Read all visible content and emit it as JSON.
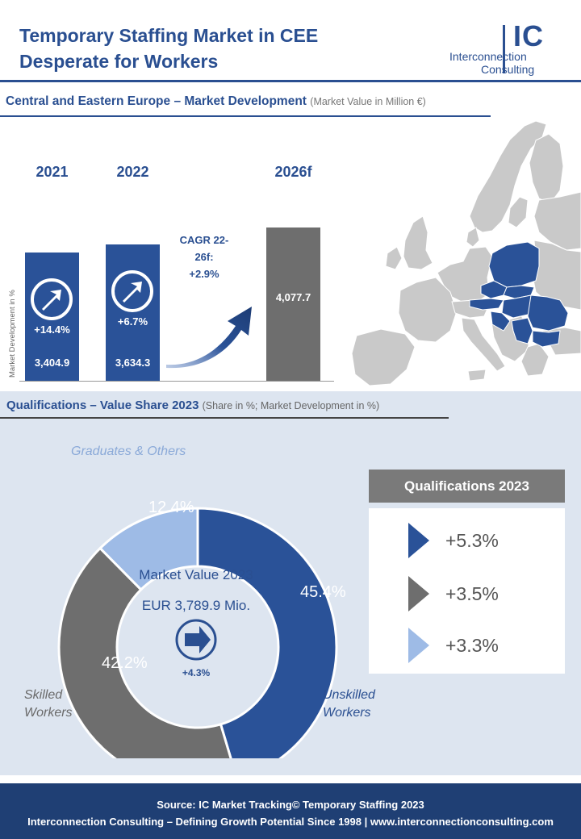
{
  "header": {
    "title_line1": "Temporary Staffing Market in CEE",
    "title_line2": "Desperate for Workers",
    "logo_mark": "IC",
    "logo_line1": "Interconnection",
    "logo_line2": "Consulting"
  },
  "market": {
    "title": "Central and Eastern Europe – Market Development",
    "subtitle": "(Market Value in Million €)",
    "ylabel": "Market Development in %",
    "cagr_label": "CAGR 22-26f:",
    "cagr_value": "+2.9%"
  },
  "qualifications": {
    "title": "Qualifications – Value Share 2023",
    "subtitle": "(Share in %; Market Development in %)",
    "center_title": "Market Value 2023",
    "center_value": "EUR 3,789.9 Mio.",
    "center_growth": "+4.3%",
    "panel_title": "Qualifications 2023",
    "growth": [
      {
        "value": "+5.3%",
        "color": "#2a5298"
      },
      {
        "value": "+3.5%",
        "color": "#6e6e6e"
      },
      {
        "value": "+3.3%",
        "color": "#9ebbe6"
      }
    ],
    "segments": [
      {
        "name": "Unskilled\nWorkers",
        "line1": "Unskilled",
        "line2": "Workers",
        "label": "45.4%"
      },
      {
        "name": "Skilled\nWorkers",
        "line1": "Skilled",
        "line2": "Workers",
        "label": "42.2%"
      },
      {
        "name": "Graduates & Others",
        "line1": "Graduates & Others",
        "line2": "",
        "label": "12.4%"
      }
    ]
  },
  "colors": {
    "blue": "#2a5298",
    "dark_blue": "#2a4f91",
    "gray": "#6e6e6e",
    "light_blue": "#9ebbe6",
    "footer": "#1f3f74"
  },
  "chart_data": [
    {
      "type": "bar",
      "title": "Central and Eastern Europe – Market Development",
      "subtitle": "(Market Value in Million €)",
      "ylabel": "Market Development in %",
      "categories": [
        "2021",
        "2022",
        "2026f"
      ],
      "values": [
        3404.9,
        3634.3,
        4077.7
      ],
      "value_labels": [
        "3,404.9",
        "3,634.3",
        "4,077.7"
      ],
      "growth_labels": [
        "+14.4%",
        "+6.7%",
        ""
      ],
      "colors": [
        "#2a5298",
        "#2a5298",
        "#6e6e6e"
      ],
      "annotation": "CAGR 22-26f: +2.9%"
    },
    {
      "type": "pie",
      "title": "Qualifications – Value Share 2023",
      "subtitle": "(Share in %; Market Development in %)",
      "labels": [
        "Unskilled Workers",
        "Skilled Workers",
        "Graduates & Others"
      ],
      "values": [
        45.4,
        42.2,
        12.4
      ],
      "growth": [
        5.3,
        3.5,
        3.3
      ],
      "colors": [
        "#2a5298",
        "#6e6e6e",
        "#9ebbe6"
      ]
    }
  ],
  "footer": {
    "line1": "Source: IC Market Tracking© Temporary Staffing 2023",
    "line2": "Interconnection Consulting – Defining Growth Potential Since 1998 | www.interconnectionconsulting.com"
  }
}
